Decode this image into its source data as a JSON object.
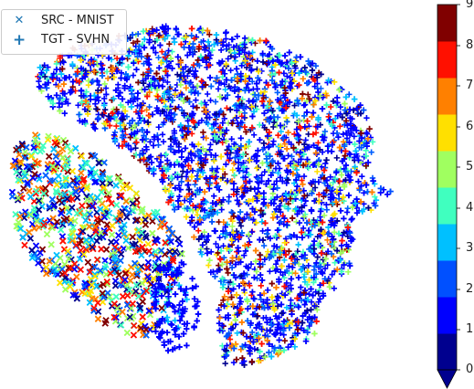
{
  "chart_data": {
    "type": "scatter",
    "title": "",
    "xlabel": "",
    "ylabel": "",
    "legend": {
      "placement": "top-left",
      "entries": [
        {
          "label": "SRC - MNIST",
          "marker": "x",
          "marker_glyph": "✕",
          "color": "#1f77b4"
        },
        {
          "label": "TGT - SVHN",
          "marker": "+",
          "marker_glyph": "+",
          "color": "#1f77b4"
        }
      ]
    },
    "colorbar": {
      "ticks": [
        "0",
        "1",
        "2",
        "3",
        "4",
        "5",
        "6",
        "7",
        "8",
        "9"
      ],
      "colors": [
        "#00008f",
        "#0000ff",
        "#0050ff",
        "#00a0ff",
        "#00f0ff",
        "#40ffbf",
        "#90ff70",
        "#e0ff20",
        "#ffc800",
        "#ff7800",
        "#ff2800",
        "#d00000",
        "#800000"
      ],
      "extend": "min"
    },
    "clusters": [
      {
        "name": "SRC - MNIST",
        "description": "source domain embedding, points colored by class 0-9"
      },
      {
        "name": "TGT - SVHN",
        "description": "target domain embedding, points colored by class 0-9"
      }
    ]
  }
}
